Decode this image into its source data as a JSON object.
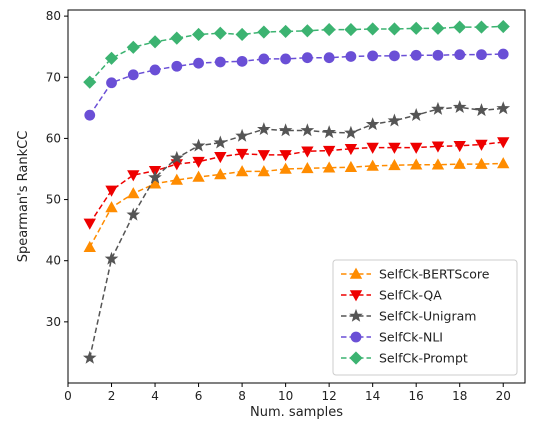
{
  "chart_data": {
    "type": "line",
    "xlabel": "Num. samples",
    "ylabel": "Spearman's RankCC",
    "xlim": [
      0,
      21
    ],
    "ylim": [
      20,
      81
    ],
    "xticks": [
      0,
      2,
      4,
      6,
      8,
      10,
      12,
      14,
      16,
      18,
      20
    ],
    "yticks": [
      30,
      40,
      50,
      60,
      70,
      80
    ],
    "grid": false,
    "legend_position": "lower-right",
    "x": [
      1,
      2,
      3,
      4,
      5,
      6,
      7,
      8,
      9,
      10,
      11,
      12,
      13,
      14,
      15,
      16,
      17,
      18,
      19,
      20
    ],
    "series": [
      {
        "name": "SelfCk-BERTScore",
        "color": "#ff8c00",
        "marker": "triangle-up",
        "values": [
          42.2,
          48.7,
          51.0,
          52.6,
          53.2,
          53.7,
          54.1,
          54.6,
          54.6,
          55.0,
          55.1,
          55.2,
          55.3,
          55.5,
          55.6,
          55.7,
          55.7,
          55.8,
          55.8,
          55.9
        ]
      },
      {
        "name": "SelfCk-QA",
        "color": "#ee0000",
        "marker": "triangle-down",
        "values": [
          46.1,
          51.5,
          54.0,
          54.7,
          55.8,
          56.2,
          57.0,
          57.5,
          57.3,
          57.3,
          57.9,
          58.0,
          58.3,
          58.5,
          58.5,
          58.5,
          58.7,
          58.8,
          59.0,
          59.4
        ]
      },
      {
        "name": "SelfCk-Unigram",
        "color": "#555555",
        "marker": "star",
        "values": [
          24.1,
          40.3,
          47.5,
          53.6,
          56.8,
          58.8,
          59.3,
          60.4,
          61.5,
          61.3,
          61.3,
          61.0,
          60.9,
          62.3,
          62.9,
          63.8,
          64.8,
          65.1,
          64.6,
          64.9
        ]
      },
      {
        "name": "SelfCk-NLI",
        "color": "#6a4fd6",
        "marker": "circle",
        "values": [
          63.8,
          69.1,
          70.4,
          71.2,
          71.8,
          72.3,
          72.5,
          72.6,
          73.0,
          73.0,
          73.2,
          73.2,
          73.4,
          73.5,
          73.5,
          73.6,
          73.6,
          73.7,
          73.7,
          73.8
        ]
      },
      {
        "name": "SelfCk-Prompt",
        "color": "#3cb371",
        "marker": "diamond",
        "values": [
          69.2,
          73.1,
          74.9,
          75.8,
          76.4,
          77.0,
          77.2,
          77.0,
          77.4,
          77.5,
          77.6,
          77.8,
          77.8,
          77.9,
          77.9,
          78.0,
          78.0,
          78.2,
          78.2,
          78.3
        ]
      }
    ]
  }
}
